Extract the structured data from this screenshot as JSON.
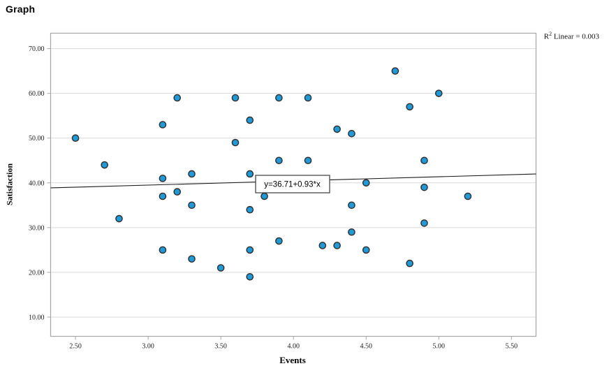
{
  "page": {
    "title": "Graph"
  },
  "annotation": {
    "r2_base": "R",
    "r2_exponent": "2",
    "r2_rest": " Linear = 0.003"
  },
  "chart_data": {
    "type": "scatter",
    "title": "Graph",
    "xlabel": "Events",
    "ylabel": "Satisfaction",
    "x_ticks": [
      "2.50",
      "3.00",
      "3.50",
      "4.00",
      "4.50",
      "5.00",
      "5.50"
    ],
    "y_ticks": [
      "10.00",
      "20.00",
      "30.00",
      "40.00",
      "50.00",
      "60.00",
      "70.00"
    ],
    "xlim": [
      2.329,
      5.669
    ],
    "ylim": [
      5.7,
      73.45
    ],
    "grid": "horizontal-only",
    "legend": "none",
    "points": [
      [
        2.5,
        50
      ],
      [
        2.7,
        44
      ],
      [
        2.8,
        32
      ],
      [
        3.1,
        53
      ],
      [
        3.1,
        41
      ],
      [
        3.1,
        37
      ],
      [
        3.1,
        25
      ],
      [
        3.2,
        59
      ],
      [
        3.2,
        38
      ],
      [
        3.3,
        42
      ],
      [
        3.3,
        35
      ],
      [
        3.3,
        23
      ],
      [
        3.5,
        21
      ],
      [
        3.6,
        59
      ],
      [
        3.6,
        49
      ],
      [
        3.7,
        54
      ],
      [
        3.7,
        42
      ],
      [
        3.7,
        34
      ],
      [
        3.7,
        25
      ],
      [
        3.7,
        19
      ],
      [
        3.8,
        37
      ],
      [
        3.9,
        59
      ],
      [
        3.9,
        45
      ],
      [
        3.9,
        27
      ],
      [
        4.1,
        59
      ],
      [
        4.1,
        45
      ],
      [
        4.2,
        26
      ],
      [
        4.3,
        26
      ],
      [
        4.3,
        52
      ],
      [
        4.4,
        51
      ],
      [
        4.4,
        35
      ],
      [
        4.4,
        29
      ],
      [
        4.5,
        40
      ],
      [
        4.5,
        25
      ],
      [
        4.7,
        65
      ],
      [
        4.8,
        57
      ],
      [
        4.8,
        22
      ],
      [
        4.9,
        45
      ],
      [
        4.9,
        39
      ],
      [
        4.9,
        31
      ],
      [
        5.0,
        60
      ],
      [
        5.2,
        37
      ]
    ],
    "regression": {
      "label": "y=36.71+0.93*x",
      "intercept": 36.71,
      "slope": 0.93,
      "r_squared": 0.003
    },
    "colors": {
      "point_fill": "#2199d6",
      "point_stroke": "#2e2e2e",
      "grid": "#d9d9d9",
      "frame": "#a6a6a6",
      "regression_line": "#1a1a1a",
      "background": "#ffffff"
    }
  }
}
